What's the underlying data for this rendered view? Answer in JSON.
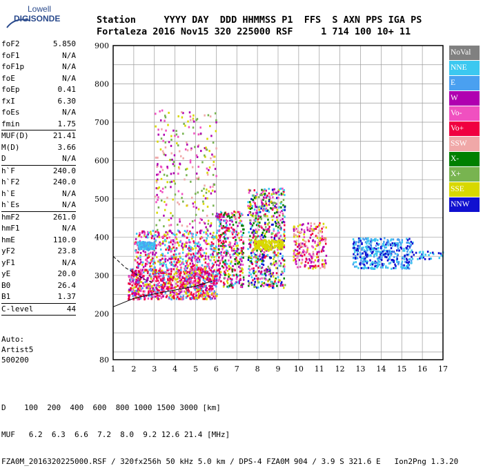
{
  "logo": {
    "line1": "Lowell",
    "line2": "DIGISONDE"
  },
  "header": {
    "labels": [
      "Station",
      "YYYY",
      "DAY",
      "DDD",
      "HHMMSS",
      "P1",
      "FFS",
      "S",
      "AXN",
      "PPS",
      "IGA",
      "PS"
    ],
    "values": [
      "Fortaleza",
      "2016",
      "Nov15",
      "320",
      "225000",
      "RSF",
      "1",
      "714",
      "100",
      "10+",
      "11"
    ]
  },
  "params": [
    [
      {
        "name": "foF2",
        "value": "5.850"
      },
      {
        "name": "foF1",
        "value": "N/A"
      },
      {
        "name": "foF1p",
        "value": "N/A"
      },
      {
        "name": "foE",
        "value": "N/A"
      },
      {
        "name": "foEp",
        "value": "0.41"
      },
      {
        "name": "fxI",
        "value": "6.30"
      },
      {
        "name": "foEs",
        "value": "N/A"
      },
      {
        "name": "fmin",
        "value": "1.75"
      }
    ],
    [
      {
        "name": "MUF(D)",
        "value": "21.41"
      },
      {
        "name": "M(D)",
        "value": "3.66"
      },
      {
        "name": "D",
        "value": "N/A"
      }
    ],
    [
      {
        "name": "h`F",
        "value": "240.0"
      },
      {
        "name": "h`F2",
        "value": "240.0"
      },
      {
        "name": "h`E",
        "value": "N/A"
      },
      {
        "name": "h`Es",
        "value": "N/A"
      }
    ],
    [
      {
        "name": "hmF2",
        "value": "261.0"
      },
      {
        "name": "hmF1",
        "value": "N/A"
      },
      {
        "name": "hmE",
        "value": "110.0"
      },
      {
        "name": "yF2",
        "value": "23.8"
      },
      {
        "name": "yF1",
        "value": "N/A"
      },
      {
        "name": "yE",
        "value": "20.0"
      },
      {
        "name": "B0",
        "value": "26.4"
      },
      {
        "name": "B1",
        "value": "1.37"
      }
    ],
    [
      {
        "name": "C-level",
        "value": "44"
      }
    ]
  ],
  "auto": {
    "line1": "Auto:",
    "line2": "Artist5",
    "line3": "500200"
  },
  "legend": [
    {
      "label": "NoVal",
      "color": "#808080"
    },
    {
      "label": "NNE",
      "color": "#3cc8f0"
    },
    {
      "label": "E",
      "color": "#4aa0f0"
    },
    {
      "label": "W",
      "color": "#b000b0"
    },
    {
      "label": "Vo-",
      "color": "#f050c0"
    },
    {
      "label": "Vo+",
      "color": "#f00040"
    },
    {
      "label": "SSW",
      "color": "#f0a8a8"
    },
    {
      "label": "X-",
      "color": "#008000"
    },
    {
      "label": "X+",
      "color": "#78b450"
    },
    {
      "label": "SSE",
      "color": "#d8d800"
    },
    {
      "label": "NNW",
      "color": "#1010d0"
    }
  ],
  "bottom": {
    "d_line": "D    100  200  400  600  800 1000 1500 3000 [km]",
    "muf_line": "MUF   6.2  6.3  6.6  7.2  8.0  9.2 12.6 21.4 [MHz]",
    "footer": "FZA0M_2016320225000.RSF / 320fx256h 50 kHz 5.0 km / DPS-4 FZA0M 904 / 3.9 S 321.6 E   Ion2Png 1.3.20"
  },
  "chart_data": {
    "type": "scatter",
    "xlim": [
      1,
      17
    ],
    "ylim": [
      80,
      900
    ],
    "xticks": [
      "1",
      "2",
      "3",
      "4",
      "5",
      "6",
      "7",
      "8",
      "9",
      "10",
      "11",
      "12",
      "13",
      "14",
      "15",
      "16",
      "17"
    ],
    "yticks": [
      "80",
      "200",
      "300",
      "400",
      "500",
      "600",
      "700",
      "800",
      "900"
    ],
    "grid": true,
    "legend_position": "right",
    "clusters": [
      {
        "x": [
          1.7,
          6.0
        ],
        "y": [
          240,
          320
        ],
        "colors": [
          "#f00040",
          "#f00040",
          "#b000b0",
          "#d8d800",
          "#4aa0f0",
          "#f050c0"
        ],
        "n": 900
      },
      {
        "x": [
          2.0,
          6.0
        ],
        "y": [
          320,
          420
        ],
        "colors": [
          "#b000b0",
          "#f050c0",
          "#f00040",
          "#d8d800",
          "#3cc8f0"
        ],
        "n": 500
      },
      {
        "x": [
          2.2,
          3.0
        ],
        "y": [
          370,
          390
        ],
        "colors": [
          "#4aa0f0",
          "#3cc8f0"
        ],
        "n": 120
      },
      {
        "x": [
          3.0,
          6.0
        ],
        "y": [
          420,
          740
        ],
        "colors": [
          "#d8d800",
          "#f0a8a8",
          "#f050c0",
          "#78b450",
          "#b000b0"
        ],
        "n": 260
      },
      {
        "x": [
          6.0,
          7.3
        ],
        "y": [
          270,
          470
        ],
        "colors": [
          "#f00040",
          "#b000b0",
          "#d8d800",
          "#3cc8f0",
          "#f050c0",
          "#008000"
        ],
        "n": 380
      },
      {
        "x": [
          7.5,
          9.3
        ],
        "y": [
          270,
          530
        ],
        "colors": [
          "#f00040",
          "#b000b0",
          "#d8d800",
          "#1010d0",
          "#3cc8f0",
          "#f050c0",
          "#008000",
          "#78b450"
        ],
        "n": 600
      },
      {
        "x": [
          7.8,
          9.2
        ],
        "y": [
          370,
          395
        ],
        "colors": [
          "#d8d800"
        ],
        "n": 160
      },
      {
        "x": [
          9.7,
          11.3
        ],
        "y": [
          320,
          440
        ],
        "colors": [
          "#d8d800",
          "#f050c0",
          "#f00040",
          "#f0a8a8",
          "#b000b0"
        ],
        "n": 220
      },
      {
        "x": [
          12.6,
          15.5
        ],
        "y": [
          320,
          400
        ],
        "colors": [
          "#1010d0",
          "#4aa0f0",
          "#3cc8f0"
        ],
        "n": 420
      },
      {
        "x": [
          15.5,
          17
        ],
        "y": [
          345,
          365
        ],
        "colors": [
          "#1010d0",
          "#3cc8f0"
        ],
        "n": 30
      }
    ],
    "curves": [
      {
        "style": "dashed",
        "points": [
          [
            1.0,
            350
          ],
          [
            1.6,
            320
          ],
          [
            2.5,
            290
          ],
          [
            3.0,
            280
          ]
        ]
      },
      {
        "style": "solid",
        "points": [
          [
            1.0,
            218
          ],
          [
            2.0,
            240
          ],
          [
            3.0,
            252
          ],
          [
            4.0,
            262
          ],
          [
            5.0,
            272
          ],
          [
            5.8,
            285
          ]
        ]
      }
    ]
  }
}
